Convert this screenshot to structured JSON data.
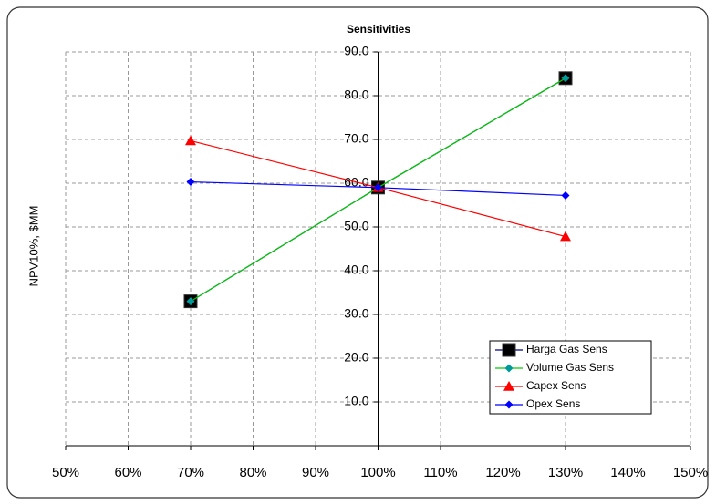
{
  "chart_data": {
    "type": "line",
    "title": "Sensitivities",
    "y_label": "NPV10%, $MM",
    "x": [
      70,
      100,
      130
    ],
    "series": [
      {
        "name": "Harga Gas Sens",
        "color": "#000080",
        "marker": "square",
        "marker_color": "#000000",
        "values": [
          33,
          59,
          84
        ]
      },
      {
        "name": "Volume Gas Sens",
        "color": "#00cc00",
        "marker": "diamond",
        "marker_color": "#009999",
        "values": [
          33,
          59,
          84
        ]
      },
      {
        "name": "Capex Sens",
        "color": "#ff0000",
        "marker": "triangle",
        "marker_color": "#ff0000",
        "values": [
          69.7,
          59,
          47.8
        ]
      },
      {
        "name": "Opex Sens",
        "color": "#0000ff",
        "marker": "diamond",
        "marker_color": "#0000ff",
        "values": [
          60.3,
          59,
          57.2
        ]
      }
    ],
    "xlim": [
      50,
      150
    ],
    "xticks": [
      {
        "value": 50,
        "label": "50%"
      },
      {
        "value": 60,
        "label": "60%"
      },
      {
        "value": 70,
        "label": "70%"
      },
      {
        "value": 80,
        "label": "80%"
      },
      {
        "value": 90,
        "label": "90%"
      },
      {
        "value": 100,
        "label": "100%"
      },
      {
        "value": 110,
        "label": "110%"
      },
      {
        "value": 120,
        "label": "120%"
      },
      {
        "value": 130,
        "label": "130%"
      },
      {
        "value": 140,
        "label": "140%"
      },
      {
        "value": 150,
        "label": "150%"
      }
    ],
    "ylim": [
      0,
      90
    ],
    "yticks": [
      {
        "value": 10,
        "label": "10.0"
      },
      {
        "value": 20,
        "label": "20.0"
      },
      {
        "value": 30,
        "label": "30.0"
      },
      {
        "value": 40,
        "label": "40.0"
      },
      {
        "value": 50,
        "label": "50.0"
      },
      {
        "value": 60,
        "label": "60.0"
      },
      {
        "value": 70,
        "label": "70.0"
      },
      {
        "value": 80,
        "label": "80.0"
      },
      {
        "value": 90,
        "label": "90.0"
      }
    ],
    "y_axis_at": 100,
    "grid": true,
    "legend": "lower right"
  }
}
